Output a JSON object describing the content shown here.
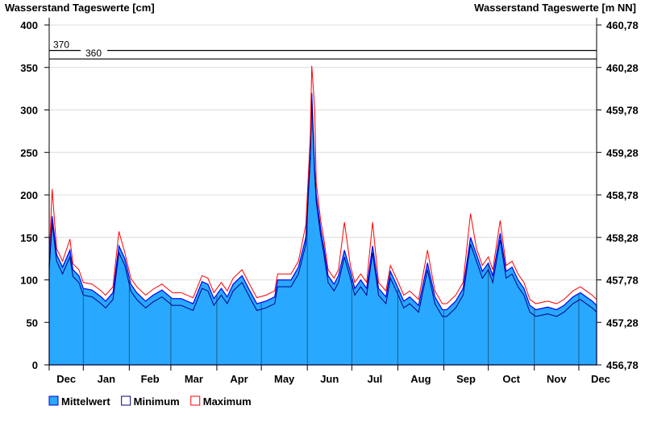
{
  "chart_data": {
    "type": "area",
    "title_left": "Wasserstand Tageswerte [cm]",
    "title_right": "Wasserstand Tageswerte [m NN]",
    "ylim": [
      0,
      400
    ],
    "y_ticks": [
      "0",
      "50",
      "100",
      "150",
      "200",
      "250",
      "300",
      "350",
      "400"
    ],
    "y2_ticks": [
      "456,78",
      "457,28",
      "457,78",
      "458,28",
      "458,78",
      "459,28",
      "459,78",
      "460,28",
      "460,78"
    ],
    "x_ticks": [
      "Dec",
      "Jan",
      "Feb",
      "Mar",
      "Apr",
      "May",
      "Jun",
      "Jul",
      "Aug",
      "Sep",
      "Oct",
      "Nov",
      "Dec"
    ],
    "month_start_days": [
      23,
      54,
      82,
      113,
      143,
      174,
      204,
      235,
      266,
      296,
      327,
      357
    ],
    "total_days": 369,
    "grid": true,
    "thresholds": [
      {
        "label": "370",
        "value": 370
      },
      {
        "label": "360",
        "value": 360
      }
    ],
    "legend": {
      "position": "bottom-left",
      "items": [
        {
          "label": "Mittelwert",
          "color": "#29a8ff",
          "border": "#0000cc"
        },
        {
          "label": "Minimum",
          "color": "#ffffff",
          "border": "#000080"
        },
        {
          "label": "Maximum",
          "color": "#ffffff",
          "border": "#ff0000"
        }
      ]
    },
    "days": [
      0,
      2,
      5,
      9,
      14,
      16,
      20,
      23,
      29,
      35,
      38,
      43,
      47,
      51,
      55,
      59,
      65,
      70,
      76,
      83,
      89,
      97,
      103,
      107,
      111,
      116,
      120,
      124,
      130,
      135,
      140,
      146,
      152,
      154,
      163,
      168,
      173,
      176,
      177,
      179,
      180,
      183,
      185,
      188,
      192,
      195,
      199,
      203,
      206,
      210,
      214,
      218,
      222,
      227,
      230,
      234,
      239,
      243,
      249,
      255,
      260,
      265,
      268,
      274,
      279,
      284,
      288,
      292,
      296,
      299,
      304,
      308,
      312,
      316,
      320,
      324,
      328,
      336,
      342,
      347,
      353,
      358,
      362,
      366,
      369
    ],
    "series": [
      {
        "name": "Mittelwert",
        "values": [
          120,
          175,
          130,
          115,
          135,
          112,
          105,
          90,
          88,
          80,
          75,
          85,
          140,
          125,
          95,
          85,
          75,
          82,
          88,
          78,
          78,
          72,
          98,
          95,
          78,
          90,
          80,
          95,
          105,
          88,
          72,
          75,
          80,
          100,
          100,
          115,
          150,
          250,
          320,
          230,
          200,
          160,
          140,
          105,
          95,
          105,
          135,
          110,
          90,
          100,
          90,
          140,
          90,
          80,
          110,
          95,
          75,
          80,
          70,
          120,
          80,
          65,
          65,
          75,
          90,
          150,
          130,
          110,
          120,
          105,
          155,
          110,
          115,
          100,
          90,
          70,
          65,
          68,
          65,
          70,
          80,
          85,
          80,
          75,
          70
        ]
      },
      {
        "name": "Minimum",
        "values": [
          112,
          167,
          122,
          107,
          127,
          104,
          97,
          82,
          80,
          72,
          67,
          77,
          132,
          117,
          87,
          77,
          67,
          74,
          80,
          70,
          70,
          64,
          90,
          87,
          70,
          82,
          72,
          87,
          97,
          80,
          64,
          67,
          72,
          92,
          92,
          107,
          142,
          242,
          312,
          222,
          192,
          152,
          132,
          97,
          87,
          97,
          127,
          102,
          82,
          92,
          82,
          132,
          82,
          72,
          102,
          87,
          67,
          72,
          62,
          112,
          72,
          57,
          57,
          67,
          82,
          142,
          122,
          102,
          112,
          97,
          147,
          102,
          107,
          92,
          82,
          62,
          57,
          60,
          57,
          62,
          72,
          77,
          72,
          67,
          62
        ]
      },
      {
        "name": "Maximum",
        "values": [
          127,
          207,
          137,
          122,
          148,
          119,
          112,
          97,
          95,
          87,
          82,
          92,
          157,
          132,
          102,
          92,
          82,
          89,
          95,
          85,
          85,
          79,
          105,
          102,
          85,
          97,
          87,
          102,
          112,
          95,
          79,
          82,
          87,
          107,
          107,
          122,
          165,
          270,
          352,
          300,
          215,
          170,
          150,
          112,
          102,
          112,
          168,
          117,
          97,
          107,
          97,
          168,
          97,
          87,
          117,
          102,
          82,
          87,
          77,
          135,
          87,
          72,
          72,
          82,
          97,
          178,
          137,
          117,
          127,
          112,
          170,
          117,
          122,
          107,
          97,
          77,
          72,
          75,
          72,
          77,
          87,
          92,
          87,
          82,
          77
        ]
      }
    ]
  }
}
